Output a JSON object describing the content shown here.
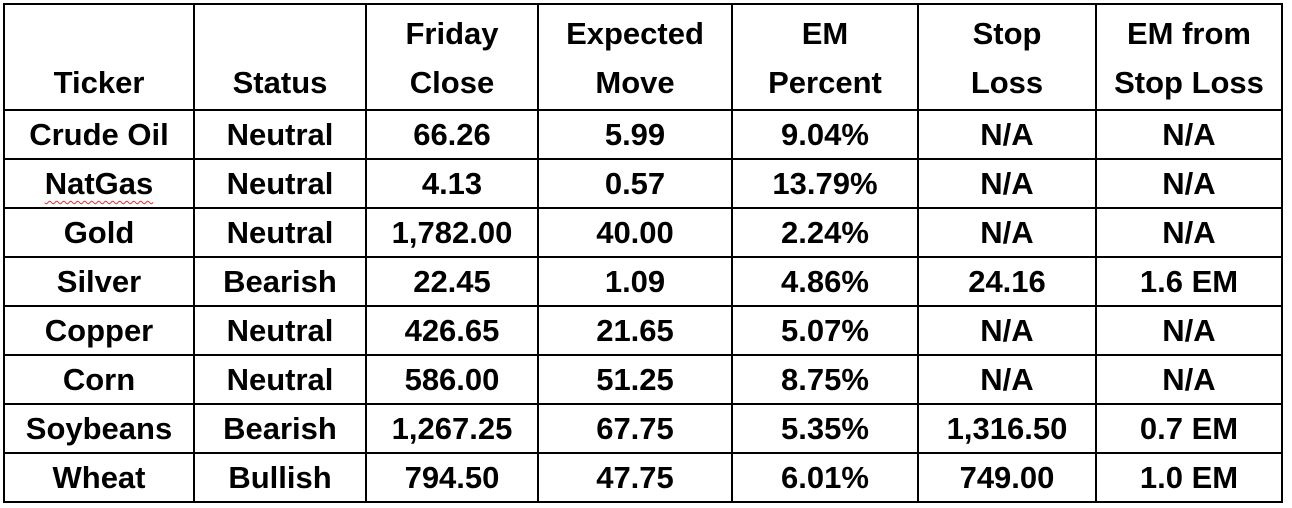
{
  "table": {
    "headers": [
      {
        "line1": "",
        "line2": "Ticker"
      },
      {
        "line1": "",
        "line2": "Status"
      },
      {
        "line1": "Friday",
        "line2": "Close"
      },
      {
        "line1": "Expected",
        "line2": "Move"
      },
      {
        "line1": "EM",
        "line2": "Percent"
      },
      {
        "line1": "Stop",
        "line2": "Loss"
      },
      {
        "line1": "EM from",
        "line2": "Stop Loss"
      }
    ],
    "rows": [
      [
        "Crude Oil",
        "Neutral",
        "66.26",
        "5.99",
        "9.04%",
        "N/A",
        "N/A"
      ],
      [
        "NatGas",
        "Neutral",
        "4.13",
        "0.57",
        "13.79%",
        "N/A",
        "N/A"
      ],
      [
        "Gold",
        "Neutral",
        "1,782.00",
        "40.00",
        "2.24%",
        "N/A",
        "N/A"
      ],
      [
        "Silver",
        "Bearish",
        "22.45",
        "1.09",
        "4.86%",
        "24.16",
        "1.6 EM"
      ],
      [
        "Copper",
        "Neutral",
        "426.65",
        "21.65",
        "5.07%",
        "N/A",
        "N/A"
      ],
      [
        "Corn",
        "Neutral",
        "586.00",
        "51.25",
        "8.75%",
        "N/A",
        "N/A"
      ],
      [
        "Soybeans",
        "Bearish",
        "1,267.25",
        "67.75",
        "5.35%",
        "1,316.50",
        "0.7 EM"
      ],
      [
        "Wheat",
        "Bullish",
        "794.50",
        "47.75",
        "6.01%",
        "749.00",
        "1.0 EM"
      ]
    ]
  }
}
